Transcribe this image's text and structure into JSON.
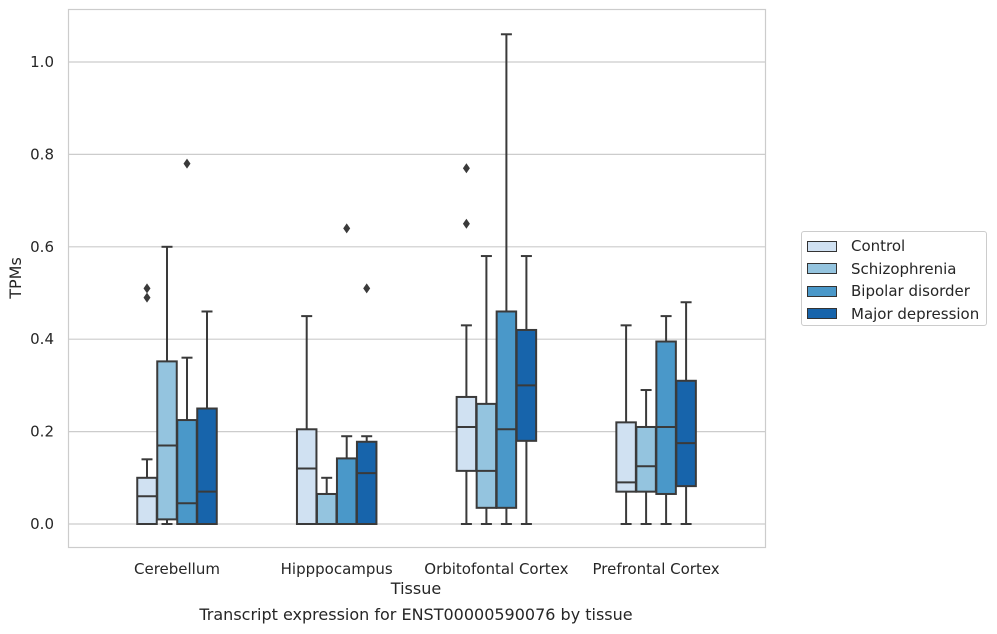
{
  "chart_data": {
    "type": "box",
    "xlabel": "Tissue",
    "ylabel": "TPMs",
    "ylim": [
      -0.05,
      1.12
    ],
    "yticks": [
      0.0,
      0.2,
      0.4,
      0.6,
      0.8,
      1.0
    ],
    "ytick_labels": [
      "0.0",
      "0.2",
      "0.4",
      "0.6",
      "0.8",
      "1.0"
    ],
    "grid": "horizontal",
    "legend_position": "right",
    "categories": [
      "Cerebellum",
      "Hipppocampus",
      "Orbitofontal Cortex",
      "Prefrontal Cortex"
    ],
    "series": [
      {
        "name": "Control",
        "color": "#d0e1f2",
        "boxes": [
          {
            "whislo": 0.0,
            "q1": 0.0,
            "med": 0.06,
            "q3": 0.1,
            "whishi": 0.14,
            "fliers": [
              0.49,
              0.51
            ]
          },
          {
            "whislo": 0.0,
            "q1": 0.0,
            "med": 0.12,
            "q3": 0.205,
            "whishi": 0.45,
            "fliers": []
          },
          {
            "whislo": 0.0,
            "q1": 0.115,
            "med": 0.21,
            "q3": 0.275,
            "whishi": 0.43,
            "fliers": [
              0.65,
              0.77
            ]
          },
          {
            "whislo": 0.0,
            "q1": 0.07,
            "med": 0.09,
            "q3": 0.22,
            "whishi": 0.43,
            "fliers": []
          }
        ]
      },
      {
        "name": "Schizophrenia",
        "color": "#94c4df",
        "boxes": [
          {
            "whislo": 0.0,
            "q1": 0.01,
            "med": 0.17,
            "q3": 0.352,
            "whishi": 0.6,
            "fliers": []
          },
          {
            "whislo": 0.0,
            "q1": 0.0,
            "med": 0.065,
            "q3": 0.065,
            "whishi": 0.1,
            "fliers": []
          },
          {
            "whislo": 0.0,
            "q1": 0.035,
            "med": 0.115,
            "q3": 0.26,
            "whishi": 0.58,
            "fliers": []
          },
          {
            "whislo": 0.0,
            "q1": 0.07,
            "med": 0.125,
            "q3": 0.21,
            "whishi": 0.29,
            "fliers": []
          }
        ]
      },
      {
        "name": "Bipolar disorder",
        "color": "#4a98c9",
        "boxes": [
          {
            "whislo": 0.0,
            "q1": 0.0,
            "med": 0.045,
            "q3": 0.225,
            "whishi": 0.36,
            "fliers": [
              0.78
            ]
          },
          {
            "whislo": 0.0,
            "q1": 0.0,
            "med": 0.0,
            "q3": 0.142,
            "whishi": 0.19,
            "fliers": [
              0.64
            ]
          },
          {
            "whislo": 0.0,
            "q1": 0.035,
            "med": 0.205,
            "q3": 0.46,
            "whishi": 1.06,
            "fliers": []
          },
          {
            "whislo": 0.0,
            "q1": 0.065,
            "med": 0.21,
            "q3": 0.395,
            "whishi": 0.45,
            "fliers": []
          }
        ]
      },
      {
        "name": "Major depression",
        "color": "#1764ab",
        "boxes": [
          {
            "whislo": 0.0,
            "q1": 0.0,
            "med": 0.07,
            "q3": 0.25,
            "whishi": 0.46,
            "fliers": []
          },
          {
            "whislo": 0.0,
            "q1": 0.0,
            "med": 0.11,
            "q3": 0.178,
            "whishi": 0.19,
            "fliers": [
              0.51
            ]
          },
          {
            "whislo": 0.0,
            "q1": 0.18,
            "med": 0.3,
            "q3": 0.42,
            "whishi": 0.58,
            "fliers": []
          },
          {
            "whislo": 0.0,
            "q1": 0.082,
            "med": 0.175,
            "q3": 0.31,
            "whishi": 0.48,
            "fliers": []
          }
        ]
      }
    ]
  },
  "caption": "Transcript expression for ENST00000590076 by tissue"
}
